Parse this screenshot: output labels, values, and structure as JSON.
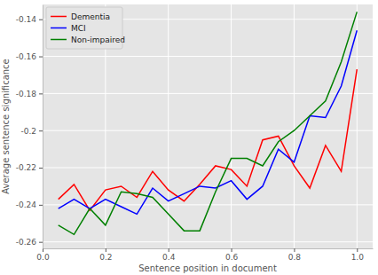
{
  "chart_data": {
    "type": "line",
    "x_label": "Sentence position in document",
    "y_label": "Average sentence significance",
    "x": [
      0.05,
      0.1,
      0.15,
      0.2,
      0.25,
      0.3,
      0.35,
      0.4,
      0.45,
      0.5,
      0.55,
      0.6,
      0.65,
      0.7,
      0.75,
      0.8,
      0.85,
      0.9,
      0.95,
      1.0
    ],
    "series": [
      {
        "name": "Dementia",
        "color": "#ff0000",
        "values": [
          -0.237,
          -0.229,
          -0.243,
          -0.232,
          -0.23,
          -0.236,
          -0.222,
          -0.232,
          -0.238,
          -0.229,
          -0.219,
          -0.221,
          -0.23,
          -0.205,
          -0.203,
          -0.219,
          -0.231,
          -0.208,
          -0.222,
          -0.167
        ]
      },
      {
        "name": "MCI",
        "color": "#0000ff",
        "values": [
          -0.242,
          -0.237,
          -0.242,
          -0.237,
          -0.241,
          -0.245,
          -0.231,
          -0.238,
          -0.234,
          -0.23,
          -0.231,
          -0.227,
          -0.237,
          -0.23,
          -0.21,
          -0.217,
          -0.192,
          -0.193,
          -0.176,
          -0.146
        ]
      },
      {
        "name": "Non-impaired",
        "color": "#008000",
        "values": [
          -0.251,
          -0.256,
          -0.242,
          -0.251,
          -0.233,
          -0.234,
          -0.236,
          -0.245,
          -0.254,
          -0.254,
          -0.233,
          -0.215,
          -0.215,
          -0.219,
          -0.206,
          -0.2,
          -0.192,
          -0.184,
          -0.163,
          -0.136
        ]
      }
    ],
    "xlim": [
      0,
      1.05
    ],
    "xticks": [
      {
        "value": 0,
        "label": "0.0"
      },
      0.2,
      0.4,
      0.6,
      0.8,
      {
        "value": 1,
        "label": "1.0"
      }
    ],
    "ylim": [
      -0.2635,
      -0.132
    ],
    "yticks": [
      -0.26,
      -0.24,
      -0.22,
      -0.2,
      -0.18,
      -0.16,
      -0.14
    ],
    "grid": true,
    "legend": "upper left"
  }
}
